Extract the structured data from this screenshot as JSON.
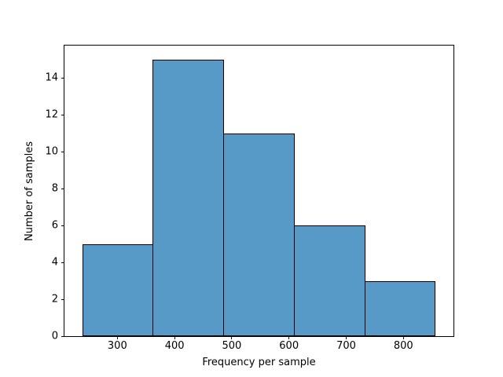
{
  "chart_data": {
    "type": "histogram",
    "xlabel": "Frequency per sample",
    "ylabel": "Number of samples",
    "bin_edges": [
      239,
      362.5,
      486,
      609.5,
      733,
      856.5
    ],
    "counts": [
      5,
      15,
      11,
      6,
      3
    ],
    "xticks": [
      300,
      400,
      500,
      600,
      700,
      800
    ],
    "yticks": [
      0,
      2,
      4,
      6,
      8,
      10,
      12,
      14
    ],
    "xlim": [
      207.5,
      887.5
    ],
    "ylim": [
      0,
      15.75
    ],
    "bar_fill": "#5799c7",
    "bar_edge": "#000000",
    "grid": false,
    "legend": false
  }
}
